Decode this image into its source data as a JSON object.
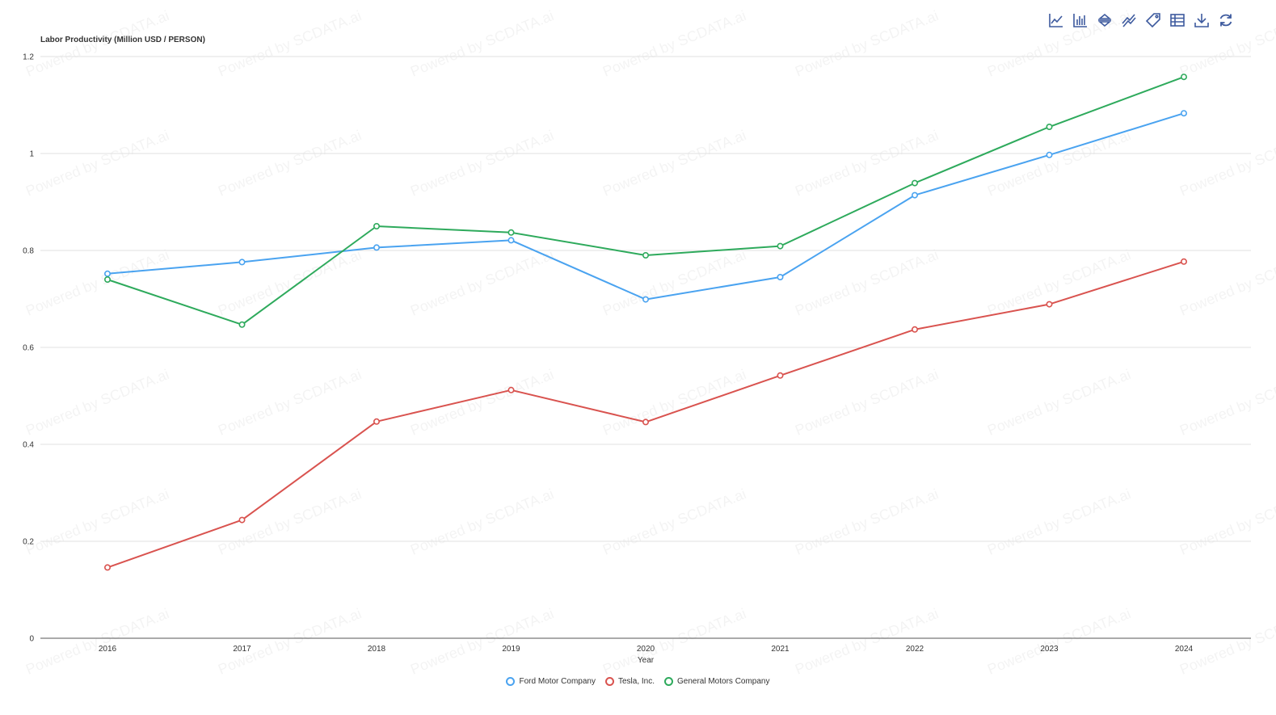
{
  "toolbar": {
    "icons": [
      "line-chart-icon",
      "bar-chart-icon",
      "sort-icon",
      "trend-icon",
      "tag-icon",
      "table-icon",
      "download-icon",
      "refresh-icon"
    ],
    "color": "#3d5a9e"
  },
  "watermark": "Powered by SCDATA.ai",
  "chart_data": {
    "type": "line",
    "ylabel": "Labor Productivity (Million USD / PERSON)",
    "xlabel": "Year",
    "ylim": [
      0,
      1.2
    ],
    "yticks": [
      "0",
      "0.2",
      "0.4",
      "0.6",
      "0.8",
      "1",
      "1.2"
    ],
    "categories": [
      "2016",
      "2017",
      "2018",
      "2019",
      "2020",
      "2021",
      "2022",
      "2023",
      "2024"
    ],
    "grid": true,
    "legend_position": "bottom-center",
    "series": [
      {
        "name": "Ford Motor Company",
        "color": "#4aa3f0",
        "values": [
          0.752,
          0.776,
          0.806,
          0.821,
          0.699,
          0.745,
          0.914,
          0.997,
          1.083
        ]
      },
      {
        "name": "Tesla, Inc.",
        "color": "#d9534f",
        "values": [
          0.146,
          0.244,
          0.447,
          0.512,
          0.446,
          0.542,
          0.637,
          0.689,
          0.777
        ]
      },
      {
        "name": "General Motors Company",
        "color": "#2eaa5c",
        "values": [
          0.74,
          0.647,
          0.85,
          0.837,
          0.79,
          0.809,
          0.939,
          1.055,
          1.158
        ]
      }
    ]
  }
}
